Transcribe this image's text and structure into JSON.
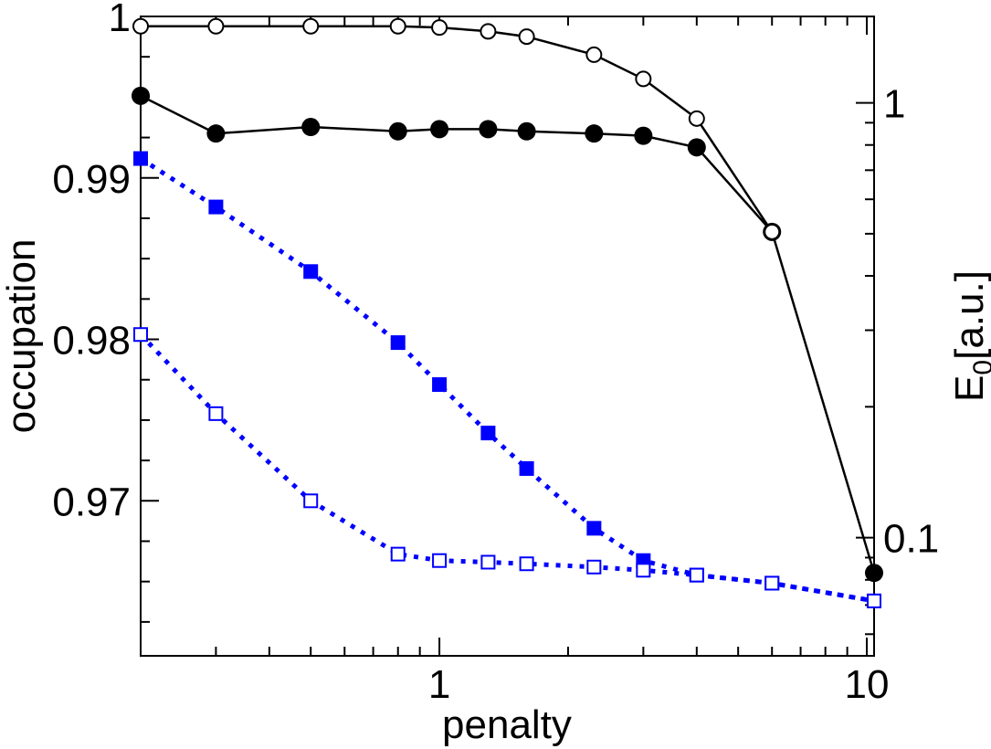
{
  "chart_data": {
    "type": "scatter",
    "title": "",
    "xlabel": "penalty",
    "ylabel_left": "occupation",
    "ylabel_right_main": "E",
    "ylabel_right_sub": "0",
    "ylabel_right_unit": "[a.u.]",
    "x_scale": "log",
    "xlim": [
      0.2,
      10.4
    ],
    "ylim_left": [
      0.9604,
      1.0
    ],
    "ylim_right": [
      0.0535,
      1.58
    ],
    "y_right_scale": "log",
    "x_ticks": [
      {
        "value": 1,
        "label": "1"
      },
      {
        "value": 10,
        "label": "10"
      }
    ],
    "y_left_ticks": [
      {
        "value": 0.97,
        "label": "0.97"
      },
      {
        "value": 0.98,
        "label": "0.98"
      },
      {
        "value": 0.99,
        "label": "0.99"
      },
      {
        "value": 1.0,
        "label": "1"
      }
    ],
    "y_right_ticks": [
      {
        "value": 0.1,
        "label": "0.1"
      },
      {
        "value": 1,
        "label": "1"
      }
    ],
    "grid": false,
    "legend": "none",
    "series": [
      {
        "axis": "left",
        "marker": "filled-square",
        "line": "dotted",
        "color": "#0000ff",
        "x": [
          0.2,
          0.3,
          0.5,
          0.8,
          1.0,
          1.3,
          1.6,
          2.3,
          3.0,
          4.0,
          6.0,
          10.4
        ],
        "y": [
          0.9912,
          0.9882,
          0.9842,
          0.9798,
          0.9772,
          0.9742,
          0.972,
          0.9683,
          0.9663,
          0.9654,
          0.9649,
          0.9638
        ]
      },
      {
        "axis": "left",
        "marker": "open-square",
        "line": "dotted",
        "color": "#0000ff",
        "x": [
          0.2,
          0.3,
          0.5,
          0.8,
          1.0,
          1.3,
          1.6,
          2.3,
          3.0,
          4.0,
          6.0,
          10.4
        ],
        "y": [
          0.9803,
          0.9754,
          0.97,
          0.9667,
          0.9663,
          0.9662,
          0.9661,
          0.9659,
          0.9657,
          0.9654,
          0.9649,
          0.9638
        ]
      },
      {
        "axis": "right",
        "marker": "filled-circle",
        "line": "solid",
        "color": "#000000",
        "x": [
          0.2,
          0.3,
          0.5,
          0.8,
          1.0,
          1.3,
          1.6,
          2.3,
          3.0,
          4.0,
          6.0,
          10.4
        ],
        "y": [
          1.038,
          0.85,
          0.88,
          0.86,
          0.87,
          0.87,
          0.86,
          0.85,
          0.84,
          0.79,
          0.505,
          0.083
        ]
      },
      {
        "axis": "right",
        "marker": "open-circle",
        "line": "solid",
        "color": "#000000",
        "x": [
          0.2,
          0.3,
          0.5,
          0.8,
          1.0,
          1.3,
          1.6,
          2.3,
          3.0,
          4.0,
          6.0
        ],
        "y": [
          1.5,
          1.5,
          1.5,
          1.5,
          1.49,
          1.46,
          1.42,
          1.29,
          1.135,
          0.92,
          0.505
        ]
      }
    ]
  }
}
